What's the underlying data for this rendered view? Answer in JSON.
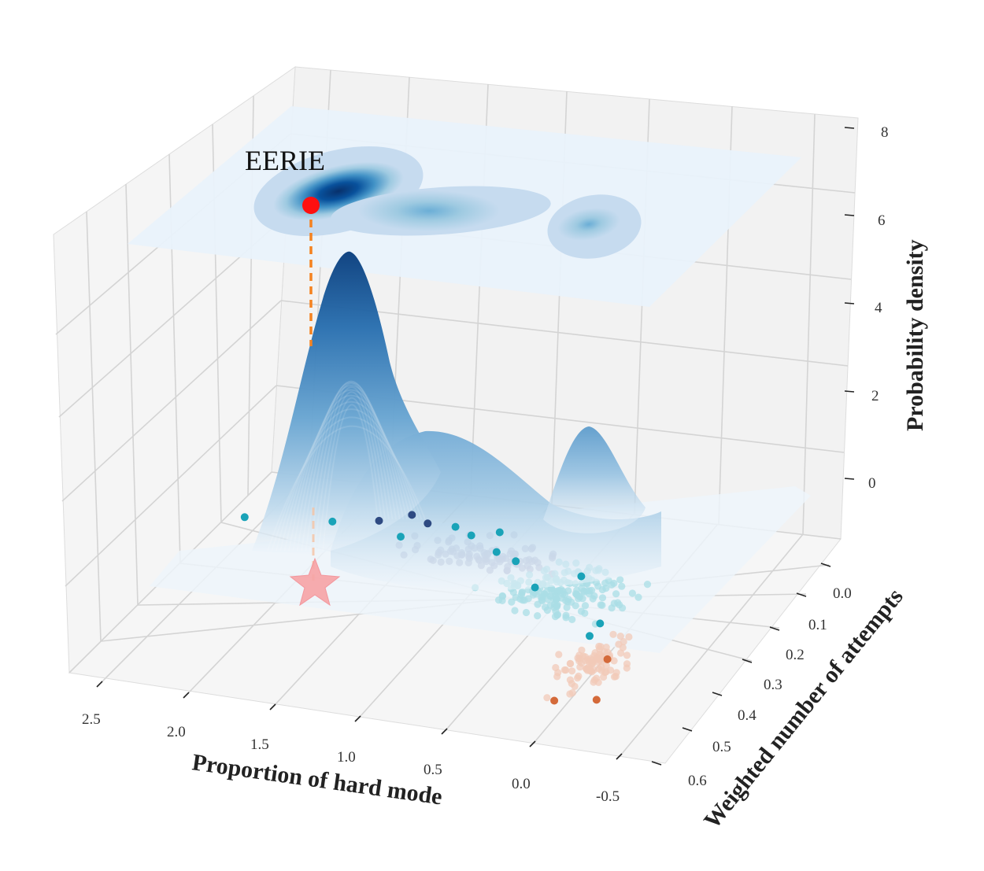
{
  "chart_data": {
    "type": "surface3d",
    "annotation": "EERIE",
    "xlabel": "Proportion of hard mode",
    "ylabel": "Weighted number of attempts",
    "zlabel": "Probability density",
    "x_ticks": [
      "2.5",
      "2.0",
      "1.5",
      "1.0",
      "0.5",
      "0.0",
      "-0.5"
    ],
    "y_ticks": [
      "0.0",
      "0.1",
      "0.2",
      "0.3",
      "0.4",
      "0.5",
      "0.6"
    ],
    "z_ticks": [
      "0",
      "2",
      "4",
      "6",
      "8"
    ],
    "xlim": [
      -0.75,
      2.75
    ],
    "ylim": [
      -0.05,
      0.65
    ],
    "zlim": [
      -1,
      8.5
    ],
    "highlight": {
      "word": "EERIE",
      "x": 1.5,
      "y": 0.05,
      "marker": "star"
    },
    "density_peaks": [
      {
        "x": 1.5,
        "y": 0.05,
        "height": 5.2
      },
      {
        "x": 0.75,
        "y": 0.17,
        "height": 1.2
      },
      {
        "x": 0.05,
        "y": 0.42,
        "height": 1.8
      }
    ],
    "series": [
      {
        "name": "",
        "color": "#b8bdd6"
      },
      {
        "name": "",
        "color": "#a9dde6"
      },
      {
        "name": "",
        "color": "#f2c9b8"
      },
      {
        "name": "",
        "color": "#2e4a82"
      },
      {
        "name": "",
        "color": "#1aa3b8"
      },
      {
        "name": "",
        "color": "#d46a3a"
      }
    ],
    "outliers": [
      {
        "x": 2.65,
        "y": 0.1,
        "series": 4
      },
      {
        "x": 2.15,
        "y": 0.08,
        "series": 4
      },
      {
        "x": 1.9,
        "y": 0.06,
        "series": 3
      },
      {
        "x": 1.7,
        "y": 0.1,
        "series": 4
      },
      {
        "x": 1.75,
        "y": 0.03,
        "series": 3
      },
      {
        "x": 1.62,
        "y": 0.05,
        "series": 3
      },
      {
        "x": 1.45,
        "y": 0.05,
        "series": 4
      },
      {
        "x": 1.32,
        "y": 0.07,
        "series": 4
      },
      {
        "x": 1.18,
        "y": 0.05,
        "series": 4
      },
      {
        "x": 1.1,
        "y": 0.11,
        "series": 4
      },
      {
        "x": 0.95,
        "y": 0.13,
        "series": 4
      },
      {
        "x": 0.72,
        "y": 0.2,
        "series": 4
      },
      {
        "x": 0.52,
        "y": 0.15,
        "series": 4
      },
      {
        "x": 0.2,
        "y": 0.28,
        "series": 4
      },
      {
        "x": 0.2,
        "y": 0.32,
        "series": 4
      },
      {
        "x": 0.1,
        "y": 0.52,
        "series": 5
      },
      {
        "x": 0.0,
        "y": 0.38,
        "series": 5
      },
      {
        "x": -0.12,
        "y": 0.5,
        "series": 5
      }
    ],
    "colormap": [
      "#f0f6fc",
      "#c6dbef",
      "#9ecae1",
      "#6baed6",
      "#3182bd",
      "#08519c",
      "#08306b"
    ]
  }
}
